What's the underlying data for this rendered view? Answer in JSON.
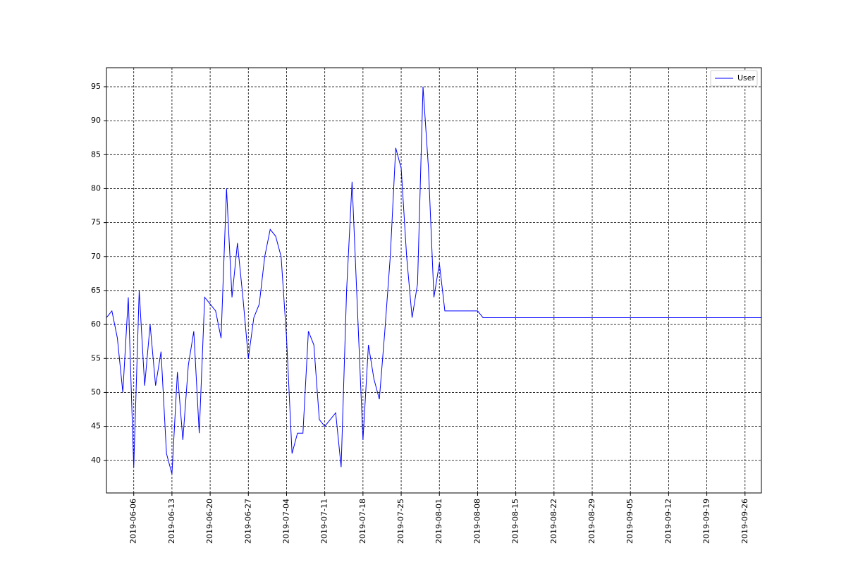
{
  "chart_data": {
    "type": "line",
    "x": [
      "2019-06-01",
      "2019-06-02",
      "2019-06-03",
      "2019-06-04",
      "2019-06-05",
      "2019-06-06",
      "2019-06-07",
      "2019-06-08",
      "2019-06-09",
      "2019-06-10",
      "2019-06-11",
      "2019-06-12",
      "2019-06-13",
      "2019-06-14",
      "2019-06-15",
      "2019-06-16",
      "2019-06-17",
      "2019-06-18",
      "2019-06-19",
      "2019-06-20",
      "2019-06-21",
      "2019-06-22",
      "2019-06-23",
      "2019-06-24",
      "2019-06-25",
      "2019-06-26",
      "2019-06-27",
      "2019-06-28",
      "2019-06-29",
      "2019-06-30",
      "2019-07-01",
      "2019-07-02",
      "2019-07-03",
      "2019-07-04",
      "2019-07-05",
      "2019-07-06",
      "2019-07-07",
      "2019-07-08",
      "2019-07-09",
      "2019-07-10",
      "2019-07-11",
      "2019-07-12",
      "2019-07-13",
      "2019-07-14",
      "2019-07-15",
      "2019-07-16",
      "2019-07-17",
      "2019-07-18",
      "2019-07-19",
      "2019-07-20",
      "2019-07-21",
      "2019-07-22",
      "2019-07-23",
      "2019-07-24",
      "2019-07-25",
      "2019-07-26",
      "2019-07-27",
      "2019-07-28",
      "2019-07-29",
      "2019-07-30",
      "2019-07-31",
      "2019-08-01",
      "2019-08-02",
      "2019-08-03",
      "2019-08-04",
      "2019-08-05",
      "2019-08-06",
      "2019-08-07",
      "2019-08-08",
      "2019-08-09",
      "2019-08-10",
      "2019-08-11",
      "2019-08-12",
      "2019-08-13",
      "2019-08-14",
      "2019-08-15",
      "2019-08-16",
      "2019-08-17",
      "2019-08-18",
      "2019-08-19",
      "2019-08-20",
      "2019-08-21",
      "2019-08-22",
      "2019-08-23",
      "2019-08-24",
      "2019-08-25",
      "2019-08-26",
      "2019-08-27",
      "2019-08-28",
      "2019-08-29",
      "2019-08-30",
      "2019-08-31",
      "2019-09-01",
      "2019-09-02",
      "2019-09-03",
      "2019-09-04",
      "2019-09-05",
      "2019-09-06",
      "2019-09-07",
      "2019-09-08",
      "2019-09-09",
      "2019-09-10",
      "2019-09-11",
      "2019-09-12",
      "2019-09-13",
      "2019-09-14",
      "2019-09-15",
      "2019-09-16",
      "2019-09-17",
      "2019-09-18",
      "2019-09-19",
      "2019-09-20",
      "2019-09-21",
      "2019-09-22",
      "2019-09-23",
      "2019-09-24",
      "2019-09-25",
      "2019-09-26",
      "2019-09-27",
      "2019-09-28",
      "2019-09-29"
    ],
    "series": [
      {
        "name": "User",
        "color": "#0000ff",
        "values": [
          61,
          62,
          58,
          50,
          64,
          39,
          65,
          51,
          60,
          51,
          56,
          41,
          38,
          53,
          43,
          54,
          59,
          44,
          64,
          63,
          62,
          58,
          80,
          64,
          72,
          64,
          55,
          61,
          63,
          70,
          74,
          73,
          70,
          58,
          41,
          44,
          44,
          59,
          57,
          46,
          45,
          46,
          47,
          39,
          65,
          81,
          62,
          43,
          57,
          52,
          49,
          59,
          70,
          86,
          83,
          70,
          61,
          66,
          95,
          83,
          64,
          69,
          62,
          62,
          62,
          62,
          62,
          62,
          62,
          61,
          61,
          61,
          61,
          61,
          61,
          61,
          61,
          61,
          61,
          61,
          61,
          61,
          61,
          61,
          61,
          61,
          61,
          61,
          61,
          61,
          61,
          61,
          61,
          61,
          61,
          61,
          61,
          61,
          61,
          61,
          61,
          61,
          61,
          61,
          61,
          61,
          61,
          61,
          61,
          61,
          61,
          61,
          61,
          61,
          61,
          61,
          61,
          61,
          61,
          61,
          61
        ]
      }
    ],
    "xlim": [
      "2019-06-01",
      "2019-09-29"
    ],
    "xticks": [
      "2019-06-06",
      "2019-06-13",
      "2019-06-20",
      "2019-06-27",
      "2019-07-04",
      "2019-07-11",
      "2019-07-18",
      "2019-07-25",
      "2019-08-01",
      "2019-08-08",
      "2019-08-15",
      "2019-08-22",
      "2019-08-29",
      "2019-09-05",
      "2019-09-12",
      "2019-09-19",
      "2019-09-26"
    ],
    "ylim": [
      35.2,
      97.8
    ],
    "yticks": [
      40,
      45,
      50,
      55,
      60,
      65,
      70,
      75,
      80,
      85,
      90,
      95
    ],
    "grid": true,
    "legend": "upper right"
  }
}
